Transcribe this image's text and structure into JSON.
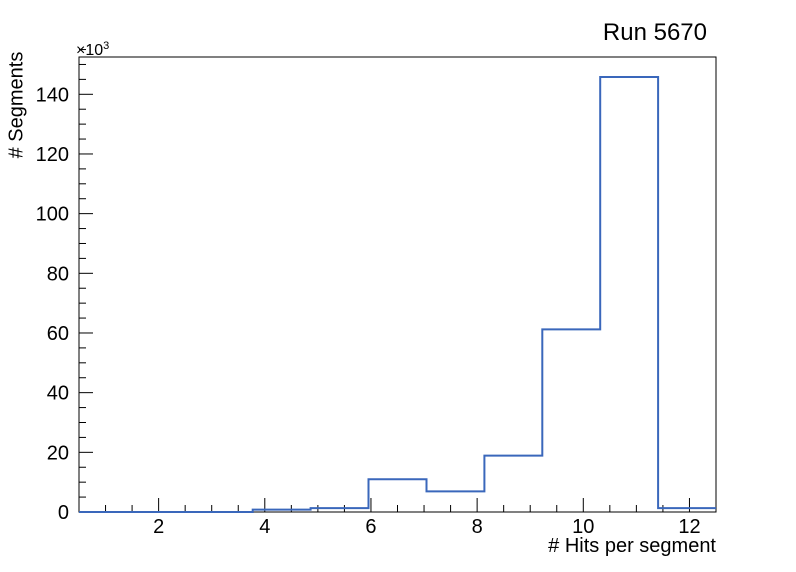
{
  "chart_data": {
    "type": "histogram",
    "title": "Run 5670",
    "xlabel": "# Hits per segment",
    "ylabel": "# Segments",
    "y_scale_exponent": {
      "base": "×10",
      "sup": "3"
    },
    "xlim": [
      0.5,
      12.5
    ],
    "ylim": [
      0,
      152500
    ],
    "n_bins": 11,
    "bin_edges": [
      0.5,
      1.5909,
      2.6818,
      3.7727,
      4.8636,
      5.9545,
      7.0455,
      8.1364,
      9.2273,
      10.3182,
      11.4091,
      12.5
    ],
    "counts": [
      0,
      0,
      0,
      800,
      1300,
      11000,
      6900,
      18900,
      61200,
      145800,
      1300
    ],
    "x_major_ticks": [
      2,
      4,
      6,
      8,
      10,
      12
    ],
    "x_major_tick_labels": [
      "2",
      "4",
      "6",
      "8",
      "10",
      "12"
    ],
    "x_minor_tick_step": 0.5,
    "y_major_ticks": [
      0,
      20000,
      40000,
      60000,
      80000,
      100000,
      120000,
      140000
    ],
    "y_major_tick_labels": [
      "0",
      "20",
      "40",
      "60",
      "80",
      "100",
      "120",
      "140"
    ],
    "y_minor_tick_step": 5000,
    "grid": false,
    "legend": null,
    "line_color": "#3a67bb",
    "axis_color": "#000000",
    "background_color": "#ffffff"
  }
}
